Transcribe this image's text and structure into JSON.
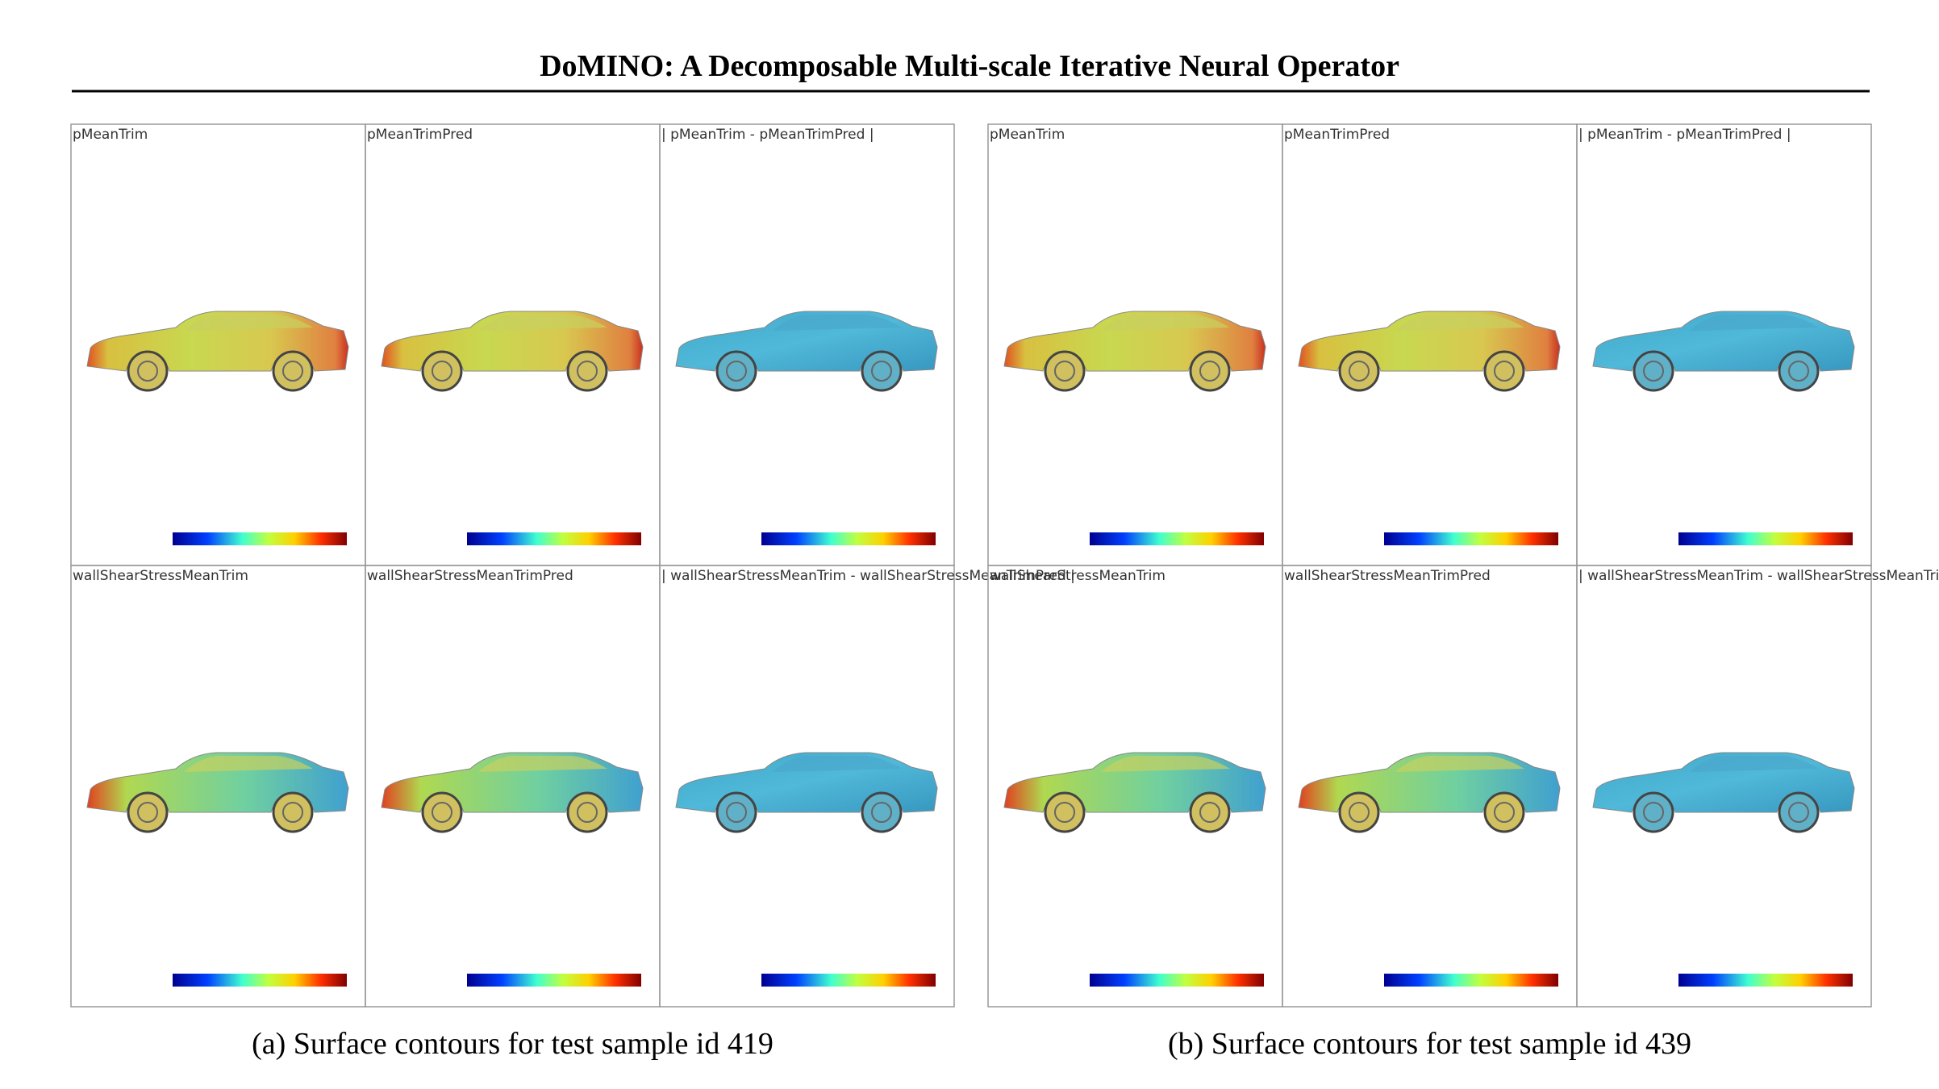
{
  "header": {
    "title": "DoMINO: A Decomposable Multi-scale Iterative Neural Operator"
  },
  "panels": [
    {
      "caption": "(a) Surface contours for test sample id 419",
      "cells": [
        "pMeanTrim",
        "pMeanTrimPred",
        "| pMeanTrim - pMeanTrimPred |",
        "wallShearStressMeanTrim",
        "wallShearStressMeanTrimPred",
        "| wallShearStressMeanTrim - wallShearStressMeanTrimPred |"
      ]
    },
    {
      "caption": "(b) Surface contours for test sample id 439",
      "cells": [
        "pMeanTrim",
        "pMeanTrimPred",
        "| pMeanTrim - pMeanTrimPred |",
        "wallShearStressMeanTrim",
        "wallShearStressMeanTrimPred",
        "| wallShearStressMeanTrim - wallShearStressMeanTrimPred |"
      ]
    }
  ]
}
